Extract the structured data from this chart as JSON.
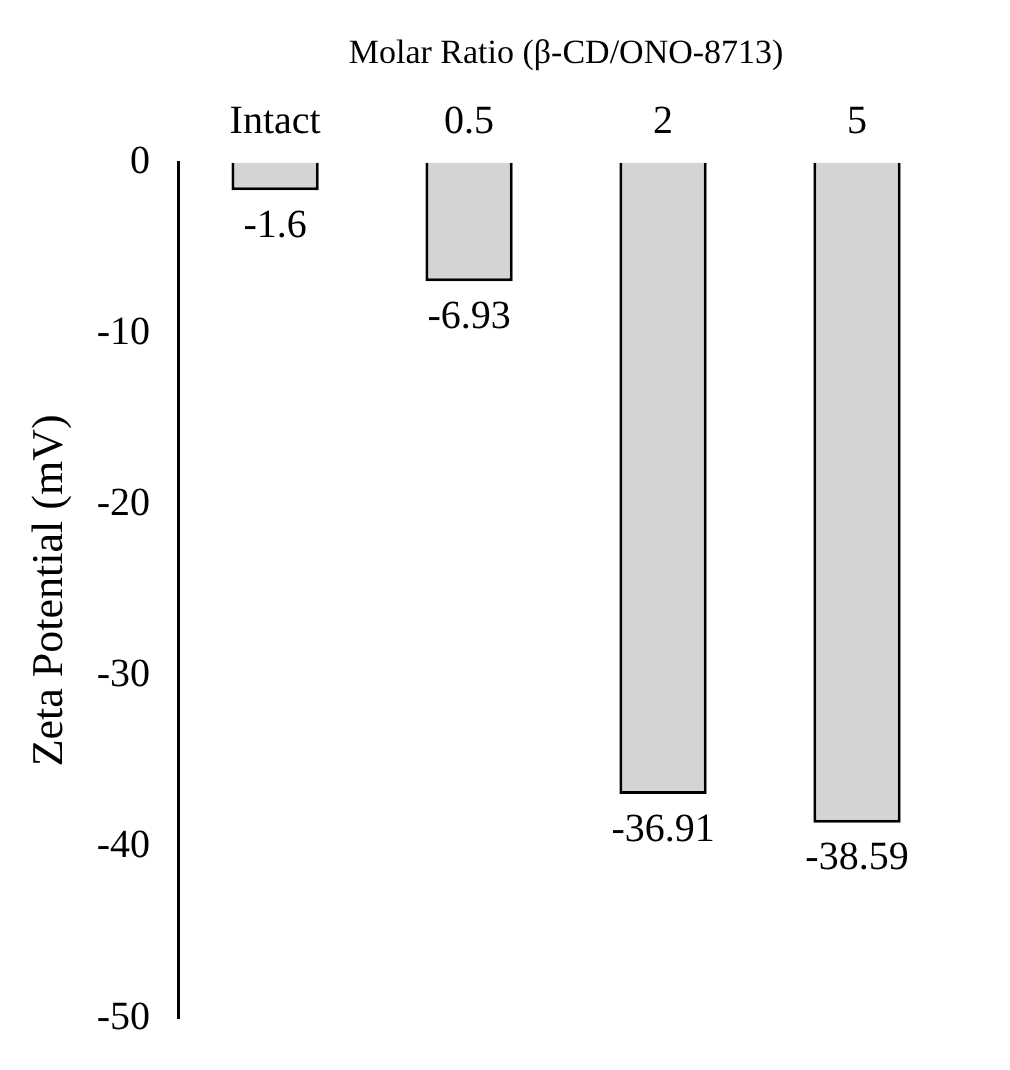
{
  "chart_data": {
    "type": "bar",
    "xlabel": "Molar Ratio (β-CD/ONO-8713)",
    "ylabel": "Zeta Potential (mV)",
    "categories": [
      "Intact",
      "0.5",
      "2",
      "5"
    ],
    "values": [
      -1.6,
      -6.93,
      -36.91,
      -38.59
    ],
    "color": "#d4d4d4",
    "ylim": [
      -50,
      0
    ],
    "yticks": [
      -50,
      -40,
      -30,
      -20,
      -10,
      0
    ],
    "data_labels": true,
    "grid": false,
    "legend": false
  }
}
